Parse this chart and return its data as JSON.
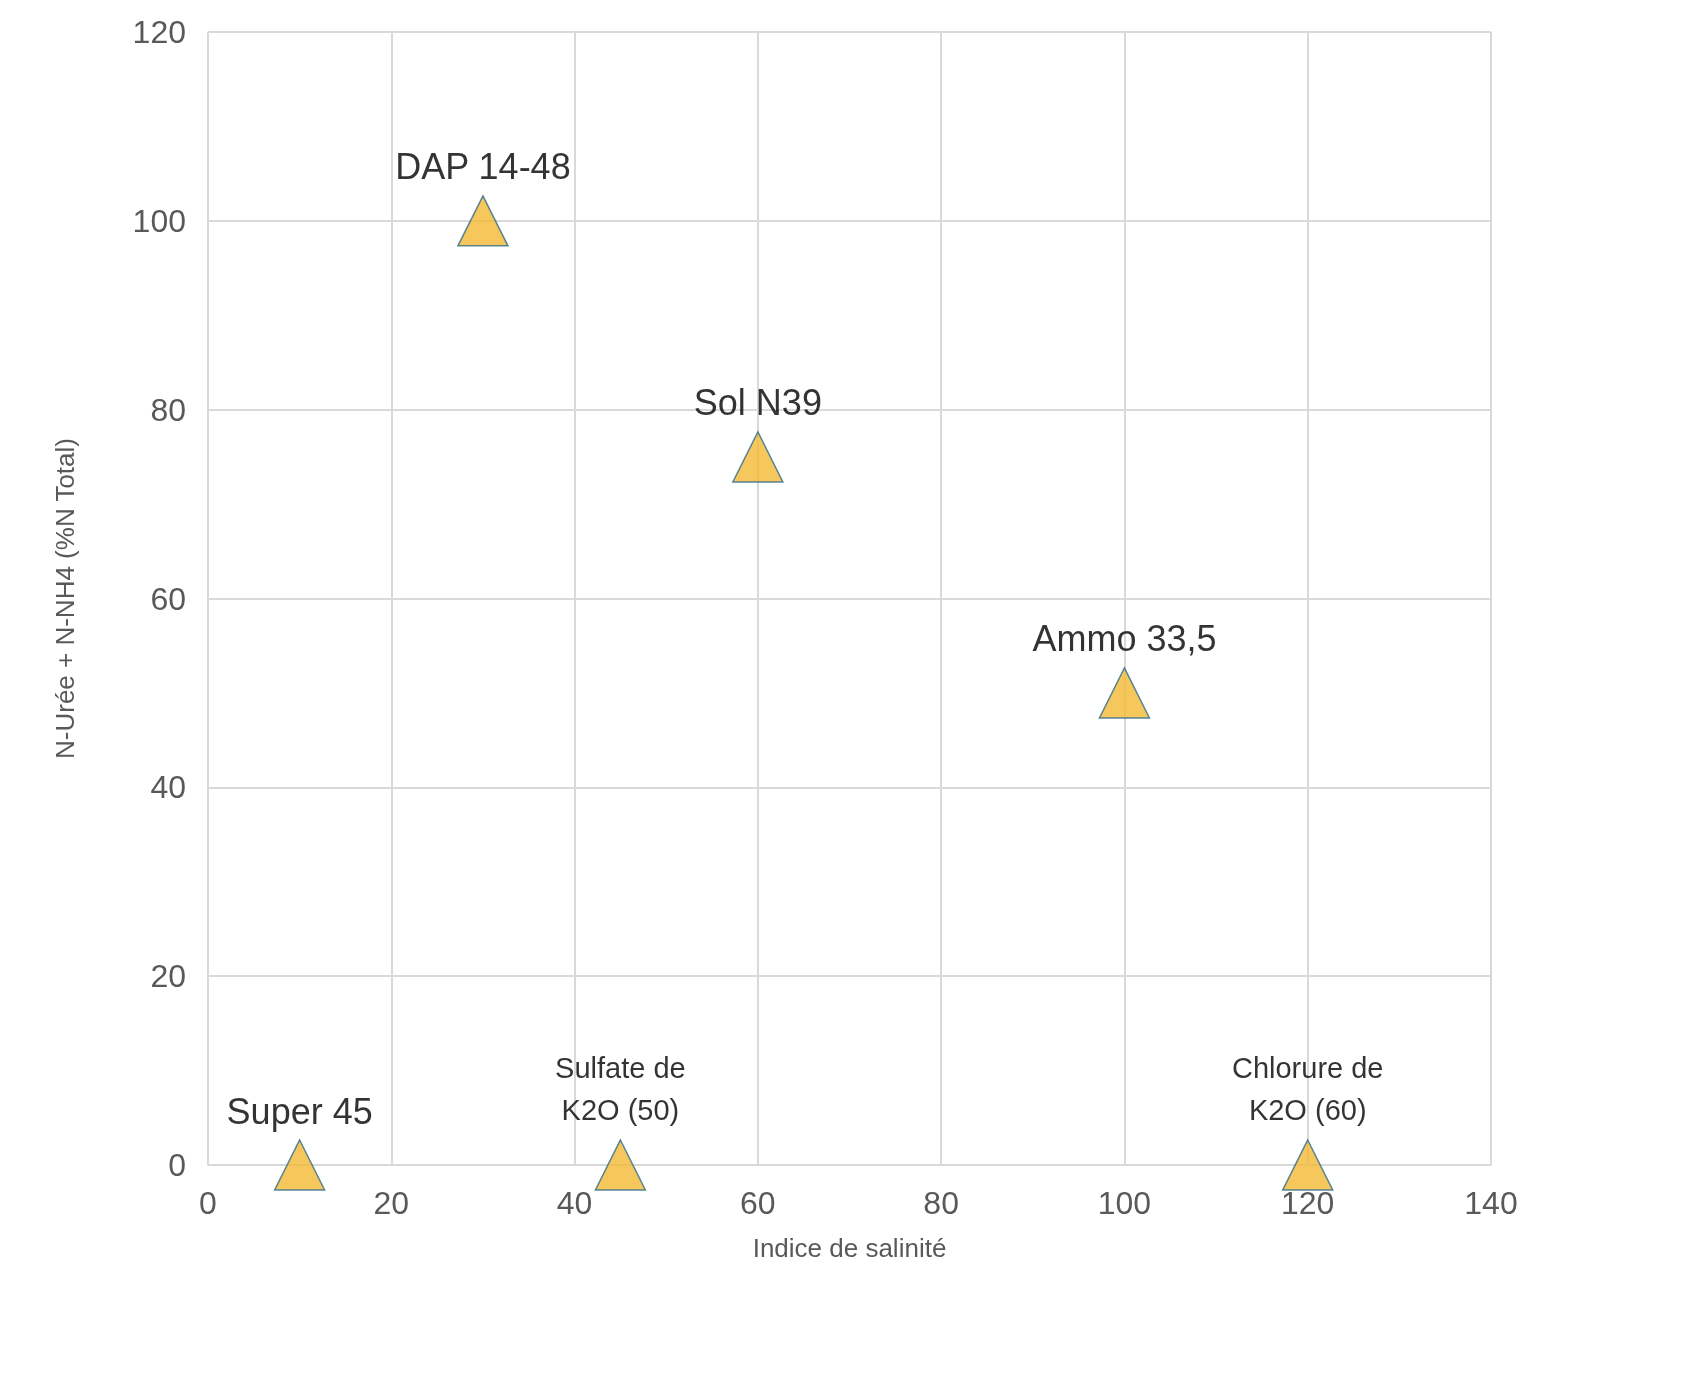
{
  "chart_data": {
    "type": "scatter",
    "xlabel": "Indice de salinité",
    "ylabel": "N-Urée + N-NH4 (%N Total)",
    "x": [
      10,
      30,
      45,
      60,
      100,
      120
    ],
    "values": [
      0,
      100,
      0,
      75,
      50,
      0
    ],
    "color": "#f2b933",
    "marker": "triangle",
    "grid": true,
    "xlim": [
      0,
      140
    ],
    "xticks": [
      0,
      20,
      40,
      60,
      80,
      100,
      120,
      140
    ],
    "ylim": [
      0,
      120
    ],
    "yticks": [
      0,
      20,
      40,
      60,
      80,
      100,
      120
    ],
    "annotations": [
      {
        "text": "Super 45",
        "x": 10,
        "y": 0
      },
      {
        "text": "DAP 14-48",
        "x": 30,
        "y": 100
      },
      {
        "text": "Sulfate de\nK2O (50)",
        "x": 45,
        "y": 0
      },
      {
        "text": "Sol N39",
        "x": 60,
        "y": 75
      },
      {
        "text": "Ammo 33,5",
        "x": 100,
        "y": 50
      },
      {
        "text": "Chlorure de\nK2O (60)",
        "x": 120,
        "y": 0
      }
    ]
  }
}
